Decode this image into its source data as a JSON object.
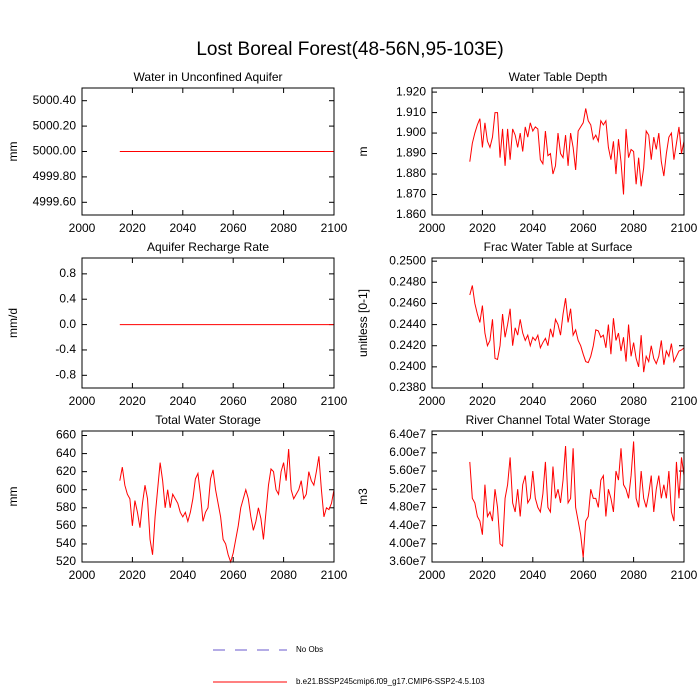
{
  "title": "Lost Boreal Forest(48-56N,95-103E)",
  "legend": [
    {
      "name": "No Obs",
      "color": "#6a5acd",
      "dashed": true
    },
    {
      "name": "b.e21.BSSP245cmip6.f09_g17.CMIP6-SSP2-4.5.103",
      "color": "#ff0000",
      "dashed": false
    }
  ],
  "chart_data": [
    {
      "type": "line",
      "title": "Water in Unconfined Aquifer",
      "ylabel": "mm",
      "color": "#ff0000",
      "xlim": [
        2000,
        2100
      ],
      "xticks": [
        2000,
        2020,
        2040,
        2060,
        2080,
        2100
      ],
      "ylim": [
        4999.5,
        5000.5
      ],
      "yticks": [
        {
          "value": 4999.6,
          "label": "4999.60"
        },
        {
          "value": 4999.8,
          "label": "4999.80"
        },
        {
          "value": 5000,
          "label": "5000.00"
        },
        {
          "value": 5000.2,
          "label": "5000.20"
        },
        {
          "value": 5000.4,
          "label": "5000.40"
        }
      ],
      "x": [
        2015,
        2016,
        2017,
        2018,
        2019,
        2020,
        2021,
        2022,
        2023,
        2024,
        2025,
        2026,
        2027,
        2028,
        2029,
        2030,
        2031,
        2032,
        2033,
        2034,
        2035,
        2036,
        2037,
        2038,
        2039,
        2040,
        2041,
        2042,
        2043,
        2044,
        2045,
        2046,
        2047,
        2048,
        2049,
        2050,
        2051,
        2052,
        2053,
        2054,
        2055,
        2056,
        2057,
        2058,
        2059,
        2060,
        2061,
        2062,
        2063,
        2064,
        2065,
        2066,
        2067,
        2068,
        2069,
        2070,
        2071,
        2072,
        2073,
        2074,
        2075,
        2076,
        2077,
        2078,
        2079,
        2080,
        2081,
        2082,
        2083,
        2084,
        2085,
        2086,
        2087,
        2088,
        2089,
        2090,
        2091,
        2092,
        2093,
        2094,
        2095,
        2096,
        2097,
        2098,
        2099,
        2100
      ],
      "values": [
        5000,
        5000,
        5000,
        5000,
        5000,
        5000,
        5000,
        5000,
        5000,
        5000,
        5000,
        5000,
        5000,
        5000,
        5000,
        5000,
        5000,
        5000,
        5000,
        5000,
        5000,
        5000,
        5000,
        5000,
        5000,
        5000,
        5000,
        5000,
        5000,
        5000,
        5000,
        5000,
        5000,
        5000,
        5000,
        5000,
        5000,
        5000,
        5000,
        5000,
        5000,
        5000,
        5000,
        5000,
        5000,
        5000,
        5000,
        5000,
        5000,
        5000,
        5000,
        5000,
        5000,
        5000,
        5000,
        5000,
        5000,
        5000,
        5000,
        5000,
        5000,
        5000,
        5000,
        5000,
        5000,
        5000,
        5000,
        5000,
        5000,
        5000,
        5000,
        5000,
        5000,
        5000,
        5000,
        5000,
        5000,
        5000,
        5000,
        5000,
        5000,
        5000,
        5000,
        5000,
        5000,
        5000
      ]
    },
    {
      "type": "line",
      "title": "Water Table Depth",
      "ylabel": "m",
      "color": "#ff0000",
      "xlim": [
        2000,
        2100
      ],
      "xticks": [
        2000,
        2020,
        2040,
        2060,
        2080,
        2100
      ],
      "ylim": [
        1.86,
        1.922
      ],
      "yticks": [
        {
          "value": 1.86,
          "label": "1.860"
        },
        {
          "value": 1.87,
          "label": "1.870"
        },
        {
          "value": 1.88,
          "label": "1.880"
        },
        {
          "value": 1.89,
          "label": "1.890"
        },
        {
          "value": 1.9,
          "label": "1.900"
        },
        {
          "value": 1.91,
          "label": "1.910"
        },
        {
          "value": 1.92,
          "label": "1.920"
        }
      ],
      "x": [
        2015,
        2016,
        2017,
        2018,
        2019,
        2020,
        2021,
        2022,
        2023,
        2024,
        2025,
        2026,
        2027,
        2028,
        2029,
        2030,
        2031,
        2032,
        2033,
        2034,
        2035,
        2036,
        2037,
        2038,
        2039,
        2040,
        2041,
        2042,
        2043,
        2044,
        2045,
        2046,
        2047,
        2048,
        2049,
        2050,
        2051,
        2052,
        2053,
        2054,
        2055,
        2056,
        2057,
        2058,
        2059,
        2060,
        2061,
        2062,
        2063,
        2064,
        2065,
        2066,
        2067,
        2068,
        2069,
        2070,
        2071,
        2072,
        2073,
        2074,
        2075,
        2076,
        2077,
        2078,
        2079,
        2080,
        2081,
        2082,
        2083,
        2084,
        2085,
        2086,
        2087,
        2088,
        2089,
        2090,
        2091,
        2092,
        2093,
        2094,
        2095,
        2096,
        2097,
        2098,
        2099,
        2100
      ],
      "values": [
        1.886,
        1.895,
        1.9,
        1.904,
        1.907,
        1.893,
        1.905,
        1.896,
        1.893,
        1.898,
        1.91,
        1.91,
        1.888,
        1.902,
        1.884,
        1.902,
        1.887,
        1.902,
        1.899,
        1.893,
        1.9,
        1.891,
        1.903,
        1.898,
        1.905,
        1.901,
        1.903,
        1.902,
        1.887,
        1.885,
        1.901,
        1.889,
        1.89,
        1.88,
        1.884,
        1.9,
        1.89,
        1.888,
        1.899,
        1.884,
        1.9,
        1.893,
        1.882,
        1.901,
        1.903,
        1.905,
        1.912,
        1.906,
        1.904,
        1.897,
        1.899,
        1.896,
        1.906,
        1.904,
        1.906,
        1.893,
        1.887,
        1.896,
        1.88,
        1.897,
        1.886,
        1.87,
        1.902,
        1.888,
        1.892,
        1.891,
        1.875,
        1.888,
        1.874,
        1.883,
        1.901,
        1.899,
        1.887,
        1.898,
        1.892,
        1.9,
        1.886,
        1.879,
        1.89,
        1.898,
        1.9,
        1.887,
        1.895,
        1.903,
        1.89,
        1.896
      ]
    },
    {
      "type": "line",
      "title": "Aquifer Recharge Rate",
      "ylabel": "mm/d",
      "color": "#ff0000",
      "xlim": [
        2000,
        2100
      ],
      "xticks": [
        2000,
        2020,
        2040,
        2060,
        2080,
        2100
      ],
      "ylim": [
        -1,
        1.05
      ],
      "yticks": [
        -0.8,
        -0.4,
        {
          "value": 0,
          "label": "0.0"
        },
        0.4,
        0.8
      ],
      "x": [
        2015,
        2016,
        2017,
        2018,
        2019,
        2020,
        2021,
        2022,
        2023,
        2024,
        2025,
        2026,
        2027,
        2028,
        2029,
        2030,
        2031,
        2032,
        2033,
        2034,
        2035,
        2036,
        2037,
        2038,
        2039,
        2040,
        2041,
        2042,
        2043,
        2044,
        2045,
        2046,
        2047,
        2048,
        2049,
        2050,
        2051,
        2052,
        2053,
        2054,
        2055,
        2056,
        2057,
        2058,
        2059,
        2060,
        2061,
        2062,
        2063,
        2064,
        2065,
        2066,
        2067,
        2068,
        2069,
        2070,
        2071,
        2072,
        2073,
        2074,
        2075,
        2076,
        2077,
        2078,
        2079,
        2080,
        2081,
        2082,
        2083,
        2084,
        2085,
        2086,
        2087,
        2088,
        2089,
        2090,
        2091,
        2092,
        2093,
        2094,
        2095,
        2096,
        2097,
        2098,
        2099,
        2100
      ],
      "values": [
        0,
        0,
        0,
        0,
        0,
        0,
        0,
        0,
        0,
        0,
        0,
        0,
        0,
        0,
        0,
        0,
        0,
        0,
        0,
        0,
        0,
        0,
        0,
        0,
        0,
        0,
        0,
        0,
        0,
        0,
        0,
        0,
        0,
        0,
        0,
        0,
        0,
        0,
        0,
        0,
        0,
        0,
        0,
        0,
        0,
        0,
        0,
        0,
        0,
        0,
        0,
        0,
        0,
        0,
        0,
        0,
        0,
        0,
        0,
        0,
        0,
        0,
        0,
        0,
        0,
        0,
        0,
        0,
        0,
        0,
        0,
        0,
        0,
        0,
        0,
        0,
        0,
        0,
        0,
        0,
        0,
        0,
        0,
        0,
        0,
        0
      ]
    },
    {
      "type": "line",
      "title": "Frac Water Table at Surface",
      "ylabel": "unitless [0-1]",
      "color": "#ff0000",
      "xlim": [
        2000,
        2100
      ],
      "xticks": [
        2000,
        2020,
        2040,
        2060,
        2080,
        2100
      ],
      "ylim": [
        0.238,
        0.2503
      ],
      "yticks": [
        {
          "value": 0.238,
          "label": "0.2380"
        },
        {
          "value": 0.24,
          "label": "0.2400"
        },
        {
          "value": 0.242,
          "label": "0.2420"
        },
        {
          "value": 0.244,
          "label": "0.2440"
        },
        {
          "value": 0.246,
          "label": "0.2460"
        },
        {
          "value": 0.248,
          "label": "0.2480"
        },
        {
          "value": 0.25,
          "label": "0.2500"
        }
      ],
      "x": [
        2015,
        2016,
        2017,
        2018,
        2019,
        2020,
        2021,
        2022,
        2023,
        2024,
        2025,
        2026,
        2027,
        2028,
        2029,
        2030,
        2031,
        2032,
        2033,
        2034,
        2035,
        2036,
        2037,
        2038,
        2039,
        2040,
        2041,
        2042,
        2043,
        2044,
        2045,
        2046,
        2047,
        2048,
        2049,
        2050,
        2051,
        2052,
        2053,
        2054,
        2055,
        2056,
        2057,
        2058,
        2059,
        2060,
        2061,
        2062,
        2063,
        2064,
        2065,
        2066,
        2067,
        2068,
        2069,
        2070,
        2071,
        2072,
        2073,
        2074,
        2075,
        2076,
        2077,
        2078,
        2079,
        2080,
        2081,
        2082,
        2083,
        2084,
        2085,
        2086,
        2087,
        2088,
        2089,
        2090,
        2091,
        2092,
        2093,
        2094,
        2095,
        2096,
        2097,
        2098,
        2099,
        2100
      ],
      "values": [
        0.2468,
        0.2477,
        0.246,
        0.245,
        0.2442,
        0.2458,
        0.2432,
        0.242,
        0.2425,
        0.2445,
        0.2408,
        0.2407,
        0.242,
        0.245,
        0.2428,
        0.244,
        0.2455,
        0.242,
        0.2437,
        0.243,
        0.2445,
        0.2432,
        0.2425,
        0.243,
        0.242,
        0.2428,
        0.2425,
        0.243,
        0.2418,
        0.2423,
        0.2427,
        0.242,
        0.2436,
        0.2428,
        0.2445,
        0.244,
        0.243,
        0.245,
        0.2465,
        0.2442,
        0.2455,
        0.243,
        0.2435,
        0.2425,
        0.242,
        0.2412,
        0.2405,
        0.2404,
        0.241,
        0.242,
        0.2435,
        0.2434,
        0.2428,
        0.243,
        0.2418,
        0.244,
        0.2412,
        0.2446,
        0.2425,
        0.2432,
        0.2415,
        0.2428,
        0.2405,
        0.244,
        0.241,
        0.2423,
        0.2408,
        0.24,
        0.243,
        0.2395,
        0.241,
        0.2405,
        0.242,
        0.2408,
        0.2403,
        0.241,
        0.2425,
        0.2402,
        0.2415,
        0.241,
        0.2422,
        0.2405,
        0.241,
        0.2415,
        0.2416,
        0.2418
      ]
    },
    {
      "type": "line",
      "title": "Total Water Storage",
      "ylabel": "mm",
      "color": "#ff0000",
      "xlim": [
        2000,
        2100
      ],
      "xticks": [
        2000,
        2020,
        2040,
        2060,
        2080,
        2100
      ],
      "ylim": [
        520,
        665
      ],
      "yticks": [
        520,
        540,
        560,
        580,
        600,
        620,
        640,
        660
      ],
      "x": [
        2015,
        2016,
        2017,
        2018,
        2019,
        2020,
        2021,
        2022,
        2023,
        2024,
        2025,
        2026,
        2027,
        2028,
        2029,
        2030,
        2031,
        2032,
        2033,
        2034,
        2035,
        2036,
        2037,
        2038,
        2039,
        2040,
        2041,
        2042,
        2043,
        2044,
        2045,
        2046,
        2047,
        2048,
        2049,
        2050,
        2051,
        2052,
        2053,
        2054,
        2055,
        2056,
        2057,
        2058,
        2059,
        2060,
        2061,
        2062,
        2063,
        2064,
        2065,
        2066,
        2067,
        2068,
        2069,
        2070,
        2071,
        2072,
        2073,
        2074,
        2075,
        2076,
        2077,
        2078,
        2079,
        2080,
        2081,
        2082,
        2083,
        2084,
        2085,
        2086,
        2087,
        2088,
        2089,
        2090,
        2091,
        2092,
        2093,
        2094,
        2095,
        2096,
        2097,
        2098,
        2099,
        2100
      ],
      "values": [
        610,
        625,
        605,
        595,
        590,
        560,
        588,
        575,
        558,
        585,
        605,
        590,
        545,
        528,
        570,
        600,
        630,
        610,
        580,
        600,
        580,
        595,
        590,
        585,
        575,
        570,
        575,
        565,
        575,
        590,
        612,
        618,
        595,
        565,
        575,
        580,
        612,
        622,
        600,
        585,
        570,
        545,
        540,
        528,
        520,
        530,
        545,
        560,
        580,
        590,
        600,
        590,
        570,
        555,
        565,
        580,
        568,
        545,
        575,
        605,
        623,
        620,
        600,
        595,
        620,
        630,
        610,
        645,
        600,
        590,
        595,
        600,
        610,
        590,
        595,
        620,
        610,
        605,
        620,
        637,
        600,
        570,
        580,
        578,
        585,
        600
      ]
    },
    {
      "type": "line",
      "title": "River Channel Total Water Storage",
      "ylabel": "m3",
      "color": "#ff0000",
      "xlim": [
        2000,
        2100
      ],
      "xticks": [
        2000,
        2020,
        2040,
        2060,
        2080,
        2100
      ],
      "ylim": [
        36000000,
        64800000
      ],
      "yticks": [
        {
          "value": 36000000,
          "label": "3.60e7"
        },
        {
          "value": 40000000,
          "label": "4.00e7"
        },
        {
          "value": 44000000,
          "label": "4.40e7"
        },
        {
          "value": 48000000,
          "label": "4.80e7"
        },
        {
          "value": 52000000,
          "label": "5.20e7"
        },
        {
          "value": 56000000,
          "label": "5.60e7"
        },
        {
          "value": 60000000,
          "label": "6.00e7"
        },
        {
          "value": 64000000,
          "label": "6.40e7"
        }
      ],
      "x": [
        2015,
        2016,
        2017,
        2018,
        2019,
        2020,
        2021,
        2022,
        2023,
        2024,
        2025,
        2026,
        2027,
        2028,
        2029,
        2030,
        2031,
        2032,
        2033,
        2034,
        2035,
        2036,
        2037,
        2038,
        2039,
        2040,
        2041,
        2042,
        2043,
        2044,
        2045,
        2046,
        2047,
        2048,
        2049,
        2050,
        2051,
        2052,
        2053,
        2054,
        2055,
        2056,
        2057,
        2058,
        2059,
        2060,
        2061,
        2062,
        2063,
        2064,
        2065,
        2066,
        2067,
        2068,
        2069,
        2070,
        2071,
        2072,
        2073,
        2074,
        2075,
        2076,
        2077,
        2078,
        2079,
        2080,
        2081,
        2082,
        2083,
        2084,
        2085,
        2086,
        2087,
        2088,
        2089,
        2090,
        2091,
        2092,
        2093,
        2094,
        2095,
        2096,
        2097,
        2098,
        2099,
        2100
      ],
      "values": [
        58000000,
        50000000,
        49000000,
        46000000,
        45000000,
        42000000,
        53000000,
        46000000,
        47000000,
        45000000,
        52000000,
        48000000,
        40000000,
        39500000,
        50000000,
        53000000,
        59000000,
        49000000,
        47000000,
        52000000,
        46000000,
        53000000,
        55000000,
        49000000,
        50000000,
        56000000,
        50000000,
        48000000,
        47000000,
        51000000,
        58000000,
        48000000,
        47000000,
        57000000,
        50000000,
        52000000,
        49000000,
        54000000,
        61500000,
        49000000,
        50000000,
        61000000,
        48000000,
        45000000,
        42000000,
        37000000,
        45000000,
        46000000,
        52000000,
        50000000,
        50000000,
        48000000,
        54000000,
        55000000,
        46000000,
        52000000,
        50000000,
        47000000,
        56000000,
        54000000,
        61000000,
        53000000,
        52000000,
        50000000,
        55000000,
        62500000,
        50000000,
        48000000,
        56000000,
        50000000,
        48000000,
        51000000,
        55000000,
        47000000,
        52000000,
        55000000,
        50000000,
        53000000,
        50000000,
        56000000,
        47000000,
        45000000,
        58000000,
        50000000,
        59000000,
        55000000
      ]
    }
  ]
}
